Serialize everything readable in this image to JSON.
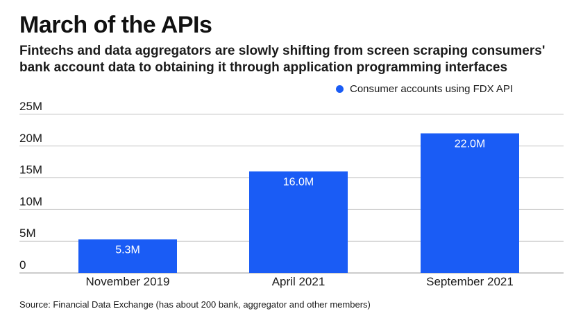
{
  "title": "March of the APIs",
  "subtitle": "Fintechs and data aggregators are slowly shifting from screen scraping consumers' bank account data to obtaining it through application programming interfaces",
  "source": "Source: Financial Data Exchange (has about 200 bank, aggregator and other members)",
  "colors": {
    "bar": "#1a5cf5",
    "grid": "#c8c8c8",
    "text": "#1a1a1a",
    "bar_label": "#ffffff"
  },
  "chart_data": {
    "type": "bar",
    "categories": [
      "November 2019",
      "April 2021",
      "September 2021"
    ],
    "series": [
      {
        "name": "Consumer accounts using FDX API",
        "values": [
          5.3,
          16.0,
          22.0
        ]
      }
    ],
    "data_labels": [
      "5.3M",
      "16.0M",
      "22.0M"
    ],
    "yticks": [
      0,
      5,
      10,
      15,
      20,
      25
    ],
    "ytick_labels": [
      "0",
      "5M",
      "10M",
      "15M",
      "20M",
      "25M"
    ],
    "ylim": [
      0,
      25
    ],
    "grid": true,
    "legend_position": "top-right"
  }
}
